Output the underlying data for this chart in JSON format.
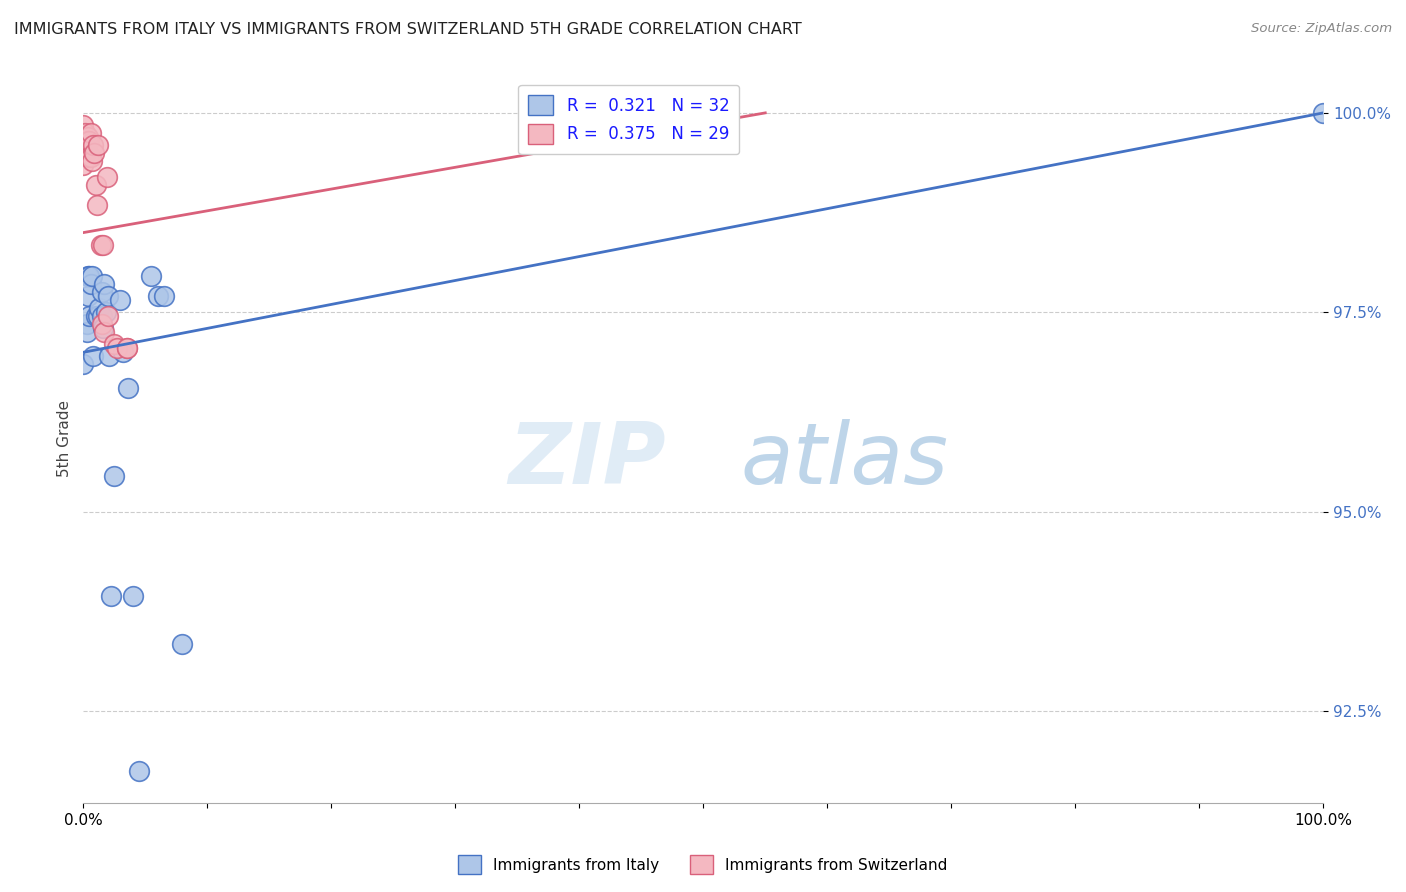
{
  "title": "IMMIGRANTS FROM ITALY VS IMMIGRANTS FROM SWITZERLAND 5TH GRADE CORRELATION CHART",
  "source": "Source: ZipAtlas.com",
  "ylabel": "5th Grade",
  "legend_italy": "Immigrants from Italy",
  "legend_switzerland": "Immigrants from Switzerland",
  "R_italy": 0.321,
  "N_italy": 32,
  "R_switzerland": 0.375,
  "N_switzerland": 29,
  "xlim": [
    0.0,
    1.0
  ],
  "ylim": [
    0.9135,
    1.005
  ],
  "yticks": [
    0.925,
    0.95,
    0.975,
    1.0
  ],
  "ytick_labels": [
    "92.5%",
    "95.0%",
    "97.5%",
    "100.0%"
  ],
  "xticks": [
    0.0,
    0.1,
    0.2,
    0.3,
    0.4,
    0.5,
    0.6,
    0.7,
    0.8,
    0.9,
    1.0
  ],
  "xtick_labels": [
    "0.0%",
    "",
    "",
    "",
    "",
    "",
    "",
    "",
    "",
    "",
    "100.0%"
  ],
  "color_italy": "#aec6e8",
  "color_switzerland": "#f4b8c1",
  "line_color_italy": "#4472C4",
  "line_color_switzerland": "#d9607a",
  "background": "#ffffff",
  "watermark_zip": "ZIP",
  "watermark_atlas": "atlas",
  "italy_x": [
    0.0,
    0.003,
    0.003,
    0.004,
    0.004,
    0.005,
    0.005,
    0.006,
    0.007,
    0.008,
    0.01,
    0.012,
    0.013,
    0.015,
    0.015,
    0.016,
    0.017,
    0.018,
    0.02,
    0.021,
    0.022,
    0.025,
    0.03,
    0.032,
    0.036,
    0.04,
    0.045,
    0.055,
    0.06,
    0.065,
    0.08,
    1.0
  ],
  "italy_y": [
    0.9685,
    0.9735,
    0.9725,
    0.9795,
    0.977,
    0.9795,
    0.9745,
    0.9785,
    0.9795,
    0.9695,
    0.9745,
    0.9745,
    0.9755,
    0.9775,
    0.9745,
    0.973,
    0.9785,
    0.975,
    0.977,
    0.9695,
    0.9395,
    0.9545,
    0.9765,
    0.97,
    0.9655,
    0.9395,
    0.9175,
    0.9795,
    0.977,
    0.977,
    0.9335,
    1.0
  ],
  "switzerland_x": [
    0.0,
    0.0,
    0.001,
    0.001,
    0.002,
    0.002,
    0.003,
    0.004,
    0.004,
    0.005,
    0.005,
    0.006,
    0.006,
    0.007,
    0.008,
    0.009,
    0.01,
    0.011,
    0.012,
    0.014,
    0.015,
    0.016,
    0.017,
    0.019,
    0.02,
    0.025,
    0.027,
    0.035,
    0.035
  ],
  "switzerland_y": [
    0.9985,
    0.9935,
    0.9975,
    0.9965,
    0.9955,
    0.995,
    0.9955,
    0.997,
    0.9965,
    0.9965,
    0.9945,
    0.9975,
    0.9945,
    0.994,
    0.996,
    0.995,
    0.991,
    0.9885,
    0.996,
    0.9835,
    0.9735,
    0.9835,
    0.9725,
    0.992,
    0.9745,
    0.971,
    0.9705,
    0.9705,
    0.9705
  ],
  "italy_line_x0": 0.0,
  "italy_line_y0": 0.97,
  "italy_line_x1": 1.0,
  "italy_line_y1": 1.0,
  "switz_line_x0": 0.0,
  "switz_line_y0": 0.985,
  "switz_line_x1": 0.55,
  "switz_line_y1": 1.0
}
